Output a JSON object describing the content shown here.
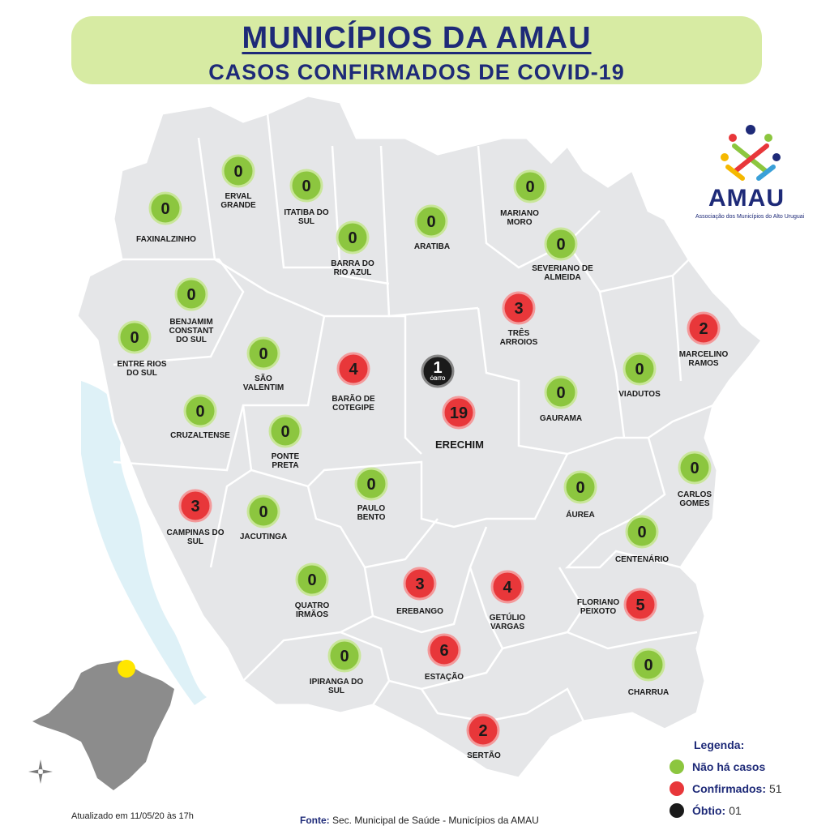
{
  "header": {
    "title": "MUNICÍPIOS DA AMAU",
    "subtitle": "CASOS CONFIRMADOS DE COVID-19"
  },
  "colors": {
    "no_cases": "#8cc63f",
    "confirmed": "#e8373a",
    "death": "#1a1a1a",
    "header_bg": "#d7eba3",
    "map_fill": "#e5e6e8",
    "title_blue": "#1e2a78"
  },
  "logo": {
    "text": "AMAU",
    "subtitle": "Associação dos Municípios do Alto Uruguai",
    "icon": "amau-people-logo-icon"
  },
  "municipalities": [
    {
      "name": "FAXINALZINHO",
      "value": 0,
      "status": "no_cases"
    },
    {
      "name": "ERVAL GRANDE",
      "value": 0,
      "status": "no_cases"
    },
    {
      "name": "ITATIBA DO SUL",
      "value": 0,
      "status": "no_cases"
    },
    {
      "name": "BARRA DO RIO AZUL",
      "value": 0,
      "status": "no_cases"
    },
    {
      "name": "ARATIBA",
      "value": 0,
      "status": "no_cases"
    },
    {
      "name": "MARIANO MORO",
      "value": 0,
      "status": "no_cases"
    },
    {
      "name": "SEVERIANO DE ALMEIDA",
      "value": 0,
      "status": "no_cases"
    },
    {
      "name": "BENJAMIM CONSTANT DO SUL",
      "value": 0,
      "status": "no_cases"
    },
    {
      "name": "ENTRE RIOS DO SUL",
      "value": 0,
      "status": "no_cases"
    },
    {
      "name": "SÃO VALENTIM",
      "value": 0,
      "status": "no_cases"
    },
    {
      "name": "BARÃO DE COTEGIPE",
      "value": 4,
      "status": "confirmed"
    },
    {
      "name": "TRÊS ARROIOS",
      "value": 3,
      "status": "confirmed"
    },
    {
      "name": "MARCELINO RAMOS",
      "value": 2,
      "status": "confirmed"
    },
    {
      "name": "VIADUTOS",
      "value": 0,
      "status": "no_cases"
    },
    {
      "name": "GAURAMA",
      "value": 0,
      "status": "no_cases"
    },
    {
      "name": "ERECHIM",
      "value": 19,
      "status": "confirmed",
      "deaths": 1,
      "death_label": "ÓBITO"
    },
    {
      "name": "CRUZALTENSE",
      "value": 0,
      "status": "no_cases"
    },
    {
      "name": "PONTE PRETA",
      "value": 0,
      "status": "no_cases"
    },
    {
      "name": "CARLOS GOMES",
      "value": 0,
      "status": "no_cases"
    },
    {
      "name": "ÁUREA",
      "value": 0,
      "status": "no_cases"
    },
    {
      "name": "PAULO BENTO",
      "value": 0,
      "status": "no_cases"
    },
    {
      "name": "CAMPINAS DO SUL",
      "value": 3,
      "status": "confirmed"
    },
    {
      "name": "JACUTINGA",
      "value": 0,
      "status": "no_cases"
    },
    {
      "name": "CENTENÁRIO",
      "value": 0,
      "status": "no_cases"
    },
    {
      "name": "QUATRO IRMÃOS",
      "value": 0,
      "status": "no_cases"
    },
    {
      "name": "EREBANGO",
      "value": 3,
      "status": "confirmed"
    },
    {
      "name": "GETÚLIO VARGAS",
      "value": 4,
      "status": "confirmed"
    },
    {
      "name": "FLORIANO PEIXOTO",
      "value": 5,
      "status": "confirmed"
    },
    {
      "name": "IPIRANGA DO SUL",
      "value": 0,
      "status": "no_cases"
    },
    {
      "name": "ESTAÇÃO",
      "value": 6,
      "status": "confirmed"
    },
    {
      "name": "CHARRUA",
      "value": 0,
      "status": "no_cases"
    },
    {
      "name": "SERTÃO",
      "value": 2,
      "status": "confirmed"
    }
  ],
  "legend": {
    "title": "Legenda:",
    "items": [
      {
        "label": "Não há casos",
        "value": "",
        "color": "#8cc63f"
      },
      {
        "label": "Confirmados:",
        "value": "51",
        "color": "#e8373a"
      },
      {
        "label": "Óbtio:",
        "value": "01",
        "color": "#1a1a1a"
      }
    ]
  },
  "footer": {
    "updated": "Atualizado em 11/05/20 às 17h",
    "source_label": "Fonte:",
    "source_text": "Sec. Municipal de Saúde - Municípios da AMAU"
  },
  "inset": {
    "highlight_color": "#ffe600"
  }
}
